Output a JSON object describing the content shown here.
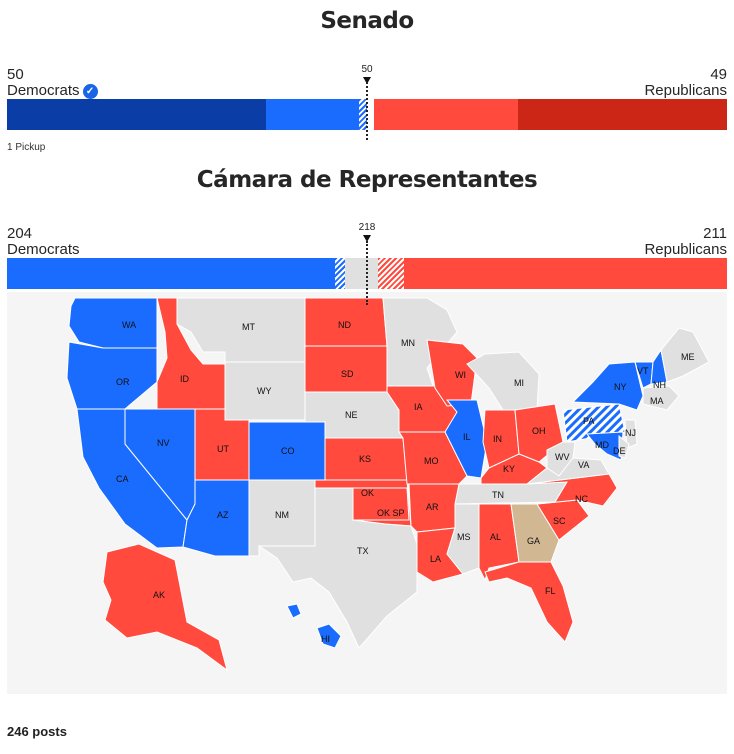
{
  "colors": {
    "dem_won": "#0a3ea6",
    "dem_lean": "#1a6cff",
    "rep_lean": "#ff4a3d",
    "rep_won": "#cc2617",
    "undecided": "#e0e0e0",
    "ga_special": "#d1b792",
    "map_bg": "#f5f5f5"
  },
  "senate": {
    "title": "Senado",
    "dem_count": "50",
    "dem_label": "Democrats",
    "rep_count": "49",
    "rep_label": "Republicans",
    "threshold": "50",
    "note": "1 Pickup",
    "winner_icon": "check-circle-icon",
    "seats": {
      "dem_won": 36,
      "dem_lean": 14,
      "rep_lean": 20,
      "rep_won": 29,
      "dem_hatched": 1,
      "rep_hatched": 0
    }
  },
  "house": {
    "title": "Cámara de Representantes",
    "dem_count": "204",
    "dem_label": "Democrats",
    "rep_count": "211",
    "rep_label": "Republicans",
    "threshold": "218",
    "seats": {
      "dem": 204,
      "dem_hatched": 2,
      "undecided": 6,
      "rep_hatched": 4,
      "rep": 211
    }
  },
  "map": {
    "states": [
      {
        "abbr": "WA",
        "status": "dem"
      },
      {
        "abbr": "OR",
        "status": "dem"
      },
      {
        "abbr": "CA",
        "status": "dem"
      },
      {
        "abbr": "NV",
        "status": "dem"
      },
      {
        "abbr": "ID",
        "status": "rep"
      },
      {
        "abbr": "MT",
        "status": "none"
      },
      {
        "abbr": "WY",
        "status": "none"
      },
      {
        "abbr": "UT",
        "status": "rep"
      },
      {
        "abbr": "AZ",
        "status": "dem"
      },
      {
        "abbr": "CO",
        "status": "dem"
      },
      {
        "abbr": "NM",
        "status": "none"
      },
      {
        "abbr": "ND",
        "status": "rep"
      },
      {
        "abbr": "SD",
        "status": "rep"
      },
      {
        "abbr": "NE",
        "status": "none"
      },
      {
        "abbr": "KS",
        "status": "rep"
      },
      {
        "abbr": "OK",
        "status": "rep"
      },
      {
        "abbr": "OK SP",
        "status": "rep"
      },
      {
        "abbr": "TX",
        "status": "none"
      },
      {
        "abbr": "MN",
        "status": "none"
      },
      {
        "abbr": "IA",
        "status": "rep"
      },
      {
        "abbr": "MO",
        "status": "rep"
      },
      {
        "abbr": "AR",
        "status": "rep"
      },
      {
        "abbr": "LA",
        "status": "rep"
      },
      {
        "abbr": "WI",
        "status": "rep"
      },
      {
        "abbr": "IL",
        "status": "dem"
      },
      {
        "abbr": "MI",
        "status": "none"
      },
      {
        "abbr": "IN",
        "status": "rep"
      },
      {
        "abbr": "OH",
        "status": "rep"
      },
      {
        "abbr": "KY",
        "status": "rep"
      },
      {
        "abbr": "TN",
        "status": "none"
      },
      {
        "abbr": "MS",
        "status": "none"
      },
      {
        "abbr": "AL",
        "status": "rep"
      },
      {
        "abbr": "GA",
        "status": "special"
      },
      {
        "abbr": "FL",
        "status": "rep"
      },
      {
        "abbr": "SC",
        "status": "rep"
      },
      {
        "abbr": "NC",
        "status": "rep"
      },
      {
        "abbr": "WV",
        "status": "none"
      },
      {
        "abbr": "VA",
        "status": "none"
      },
      {
        "abbr": "PA",
        "status": "dem-hatched"
      },
      {
        "abbr": "NY",
        "status": "dem"
      },
      {
        "abbr": "VT",
        "status": "dem"
      },
      {
        "abbr": "NH",
        "status": "dem"
      },
      {
        "abbr": "MA",
        "status": "none"
      },
      {
        "abbr": "ME",
        "status": "none"
      },
      {
        "abbr": "NJ",
        "status": "none"
      },
      {
        "abbr": "MD",
        "status": "dem"
      },
      {
        "abbr": "DE",
        "status": "none"
      },
      {
        "abbr": "AK",
        "status": "rep"
      },
      {
        "abbr": "HI",
        "status": "dem"
      }
    ]
  },
  "footer": {
    "posts": "246 posts"
  }
}
